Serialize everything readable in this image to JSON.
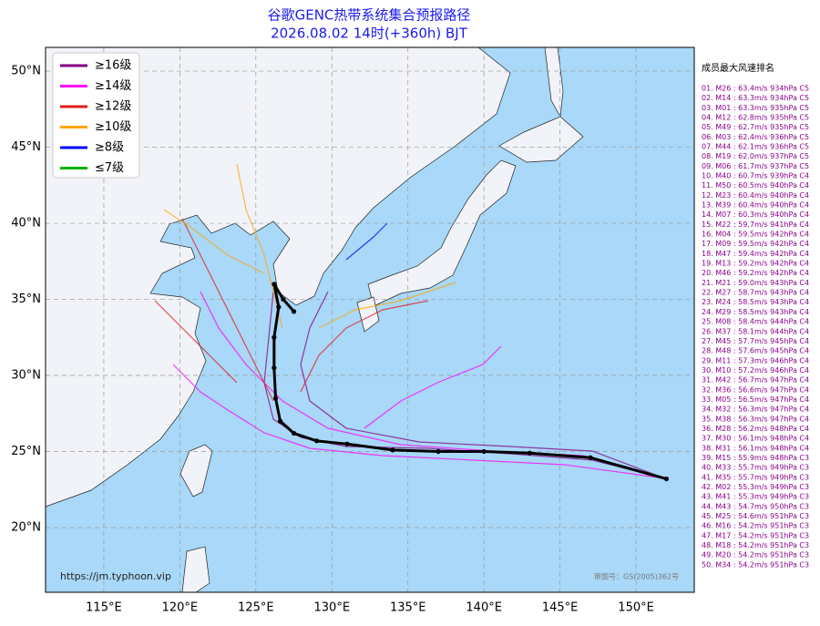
{
  "header": {
    "title": "谷歌GENC热带系统集合预报路径",
    "subtitle": "2026.08.02 14时(+360h) BJT"
  },
  "map": {
    "xlim": [
      111.17,
      153.83
    ],
    "ylim": [
      15.75,
      51.56
    ],
    "xticks": [
      {
        "value": 115,
        "label": "115°E"
      },
      {
        "value": 120,
        "label": "120°E"
      },
      {
        "value": 125,
        "label": "125°E"
      },
      {
        "value": 130,
        "label": "130°E"
      },
      {
        "value": 135,
        "label": "135°E"
      },
      {
        "value": 140,
        "label": "140°E"
      },
      {
        "value": 145,
        "label": "145°E"
      },
      {
        "value": 150,
        "label": "150°E"
      }
    ],
    "yticks": [
      {
        "value": 20,
        "label": "20°N"
      },
      {
        "value": 25,
        "label": "25°N"
      },
      {
        "value": 30,
        "label": "30°N"
      },
      {
        "value": 35,
        "label": "35°N"
      },
      {
        "value": 40,
        "label": "40°N"
      },
      {
        "value": 45,
        "label": "45°N"
      },
      {
        "value": 50,
        "label": "50°N"
      }
    ],
    "grid": true,
    "mean_track": {
      "color": "#000000",
      "lon": [
        152.0,
        147.0,
        143.0,
        140.0,
        137.0,
        134.0,
        131.0,
        129.0,
        127.5,
        126.6,
        126.3,
        126.2,
        126.2,
        126.5,
        126.2,
        126.8,
        127.5
      ],
      "lat": [
        23.2,
        24.6,
        24.9,
        25.0,
        25.0,
        25.1,
        25.5,
        25.7,
        26.2,
        27.0,
        28.5,
        30.5,
        32.5,
        34.5,
        36.0,
        35.0,
        34.2
      ]
    }
  },
  "legend": {
    "items": [
      {
        "label": "≥16级",
        "color": "#800080"
      },
      {
        "label": "≥14级",
        "color": "#ff00ff"
      },
      {
        "label": "≥12级",
        "color": "#e31a1c"
      },
      {
        "label": "≥10级",
        "color": "#ffa500"
      },
      {
        "label": "≥8级",
        "color": "#0000ff"
      },
      {
        "label": "≤7级",
        "color": "#00b000"
      }
    ]
  },
  "ranking": {
    "title": "成员最大风速排名",
    "entries": [
      "01. M26 : 63.4m/s 934hPa C5",
      "02. M14 : 63.3m/s 934hPa C5",
      "03. M01 : 63.3m/s 935hPa C5",
      "04. M12 : 62.8m/s 935hPa C5",
      "05. M49 : 62.7m/s 935hPa C5",
      "06. M03 : 62.4m/s 936hPa C5",
      "07. M44 : 62.1m/s 936hPa C5",
      "08. M19 : 62.0m/s 937hPa C5",
      "09. M06 : 61.7m/s 937hPa C5",
      "10. M40 : 60.7m/s 939hPa C4",
      "11. M50 : 60.5m/s 940hPa C4",
      "12. M23 : 60.4m/s 940hPa C4",
      "13. M39 : 60.4m/s 940hPa C4",
      "14. M07 : 60.3m/s 940hPa C4",
      "15. M22 : 59.7m/s 941hPa C4",
      "16. M04 : 59.5m/s 942hPa C4",
      "17. M09 : 59.5m/s 942hPa C4",
      "18. M47 : 59.4m/s 942hPa C4",
      "19. M13 : 59.2m/s 942hPa C4",
      "20. M46 : 59.2m/s 942hPa C4",
      "21. M21 : 59.0m/s 943hPa C4",
      "22. M27 : 58.7m/s 943hPa C4",
      "23. M24 : 58.5m/s 943hPa C4",
      "24. M29 : 58.5m/s 943hPa C4",
      "25. M08 : 58.4m/s 944hPa C4",
      "26. M37 : 58.1m/s 944hPa C4",
      "27. M45 : 57.7m/s 945hPa C4",
      "28. M48 : 57.6m/s 945hPa C4",
      "29. M11 : 57.3m/s 946hPa C4",
      "30. M10 : 57.2m/s 946hPa C4",
      "31. M42 : 56.7m/s 947hPa C4",
      "32. M36 : 56.6m/s 947hPa C4",
      "33. M05 : 56.5m/s 947hPa C4",
      "34. M32 : 56.3m/s 947hPa C4",
      "35. M38 : 56.3m/s 947hPa C4",
      "36. M28 : 56.2m/s 948hPa C4",
      "37. M30 : 56.1m/s 948hPa C4",
      "38. M31 : 56.1m/s 948hPa C4",
      "39. M15 : 55.9m/s 948hPa C3",
      "40. M33 : 55.7m/s 949hPa C3",
      "41. M35 : 55.7m/s 949hPa C3",
      "42. M02 : 55.3m/s 949hPa C3",
      "43. M41 : 55.3m/s 949hPa C3",
      "44. M43 : 54.7m/s 950hPa C3",
      "45. M25 : 54.6m/s 951hPa C3",
      "46. M16 : 54.2m/s 951hPa C3",
      "47. M17 : 54.2m/s 951hPa C3",
      "48. M18 : 54.2m/s 951hPa C3",
      "49. M20 : 54.2m/s 951hPa C3",
      "50. M34 : 54.2m/s 951hPa C3"
    ]
  },
  "footer": {
    "url": "https://jm.typhoon.vip",
    "approval": "审图号：GS(2005)362号"
  }
}
